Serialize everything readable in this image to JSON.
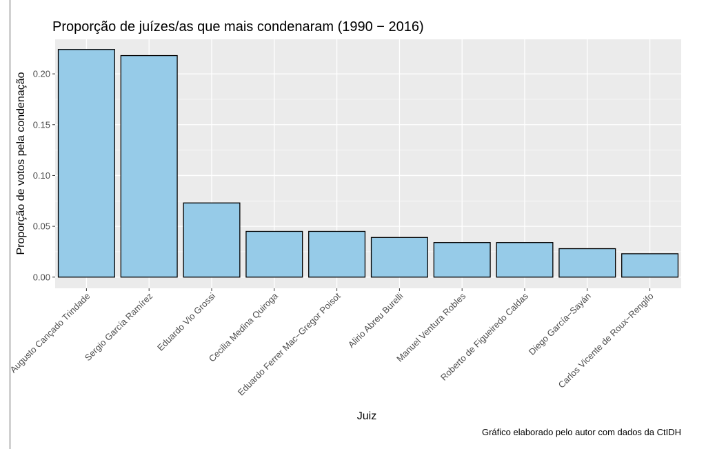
{
  "chart_data": {
    "type": "bar",
    "title": "Proporção de juízes/as que mais condenaram (1990 − 2016)",
    "xlabel": "Juiz",
    "ylabel": "Proporção de votos pela condenação",
    "caption": "Gráfico elaborado pelo autor com dados da CtIDH",
    "categories": [
      "Augusto Cançado Trindade",
      "Sergio García Ramírez",
      "Eduardo Vio Grossi",
      "Cecilia Medina Quiroga",
      "Eduardo Ferrer Mac−Gregor Poisot",
      "Alirio Abreu Burelli",
      "Manuel Ventura Robles",
      "Roberto de Figueiredo Caldas",
      "Diego García−Sayán",
      "Carlos Vicente de Roux−Rengifo"
    ],
    "values": [
      0.224,
      0.218,
      0.073,
      0.045,
      0.045,
      0.039,
      0.034,
      0.034,
      0.028,
      0.023
    ],
    "yticks": [
      "0.00",
      "0.05",
      "0.10",
      "0.15",
      "0.20"
    ],
    "ylim": [
      -0.011,
      0.234
    ],
    "grid": true,
    "colors": {
      "bar_fill": "#96cbe8",
      "bar_stroke": "#000000",
      "panel": "#ebebeb",
      "grid": "#ffffff"
    }
  }
}
